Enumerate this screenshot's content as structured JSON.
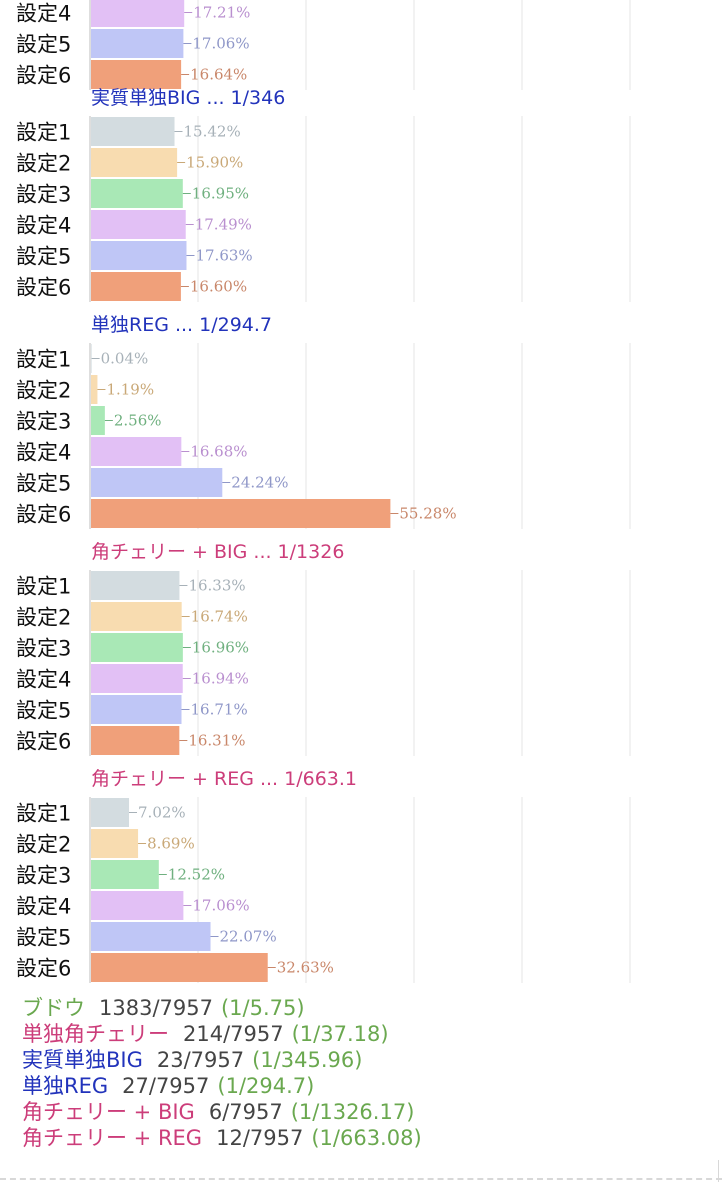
{
  "chart_data": [
    {
      "type": "bar",
      "title": "",
      "categories": [
        "設定4",
        "設定5",
        "設定6"
      ],
      "values": [
        17.21,
        17.06,
        16.64
      ],
      "value_labels": [
        "17.21%",
        "17.06%",
        "16.64%"
      ],
      "xlim": [
        0,
        100
      ],
      "grid": true
    },
    {
      "type": "bar",
      "title": "実質単独BIG ... 1/346",
      "categories": [
        "設定1",
        "設定2",
        "設定3",
        "設定4",
        "設定5",
        "設定6"
      ],
      "values": [
        15.42,
        15.9,
        16.95,
        17.49,
        17.63,
        16.6
      ],
      "value_labels": [
        "15.42%",
        "15.90%",
        "16.95%",
        "17.49%",
        "17.63%",
        "16.60%"
      ],
      "xlim": [
        0,
        100
      ],
      "grid": true
    },
    {
      "type": "bar",
      "title": "単独REG ... 1/294.7",
      "categories": [
        "設定1",
        "設定2",
        "設定3",
        "設定4",
        "設定5",
        "設定6"
      ],
      "values": [
        0.04,
        1.19,
        2.56,
        16.68,
        24.24,
        55.28
      ],
      "value_labels": [
        "0.04%",
        "1.19%",
        "2.56%",
        "16.68%",
        "24.24%",
        "55.28%"
      ],
      "xlim": [
        0,
        100
      ],
      "grid": true
    },
    {
      "type": "bar",
      "title": "角チェリー + BIG ... 1/1326",
      "categories": [
        "設定1",
        "設定2",
        "設定3",
        "設定4",
        "設定5",
        "設定6"
      ],
      "values": [
        16.33,
        16.74,
        16.96,
        16.94,
        16.71,
        16.31
      ],
      "value_labels": [
        "16.33%",
        "16.74%",
        "16.96%",
        "16.94%",
        "16.71%",
        "16.31%"
      ],
      "xlim": [
        0,
        100
      ],
      "grid": true
    },
    {
      "type": "bar",
      "title": "角チェリー + REG ... 1/663.1",
      "categories": [
        "設定1",
        "設定2",
        "設定3",
        "設定4",
        "設定5",
        "設定6"
      ],
      "values": [
        7.02,
        8.69,
        12.52,
        17.06,
        22.07,
        32.63
      ],
      "value_labels": [
        "7.02%",
        "8.69%",
        "12.52%",
        "17.06%",
        "22.07%",
        "32.63%"
      ],
      "xlim": [
        0,
        100
      ],
      "grid": true
    }
  ],
  "colors": {
    "settings": {
      "設定1": "#d3dce0",
      "設定2": "#f8dcb0",
      "設定3": "#a9e8b6",
      "設定4": "#e2c0f5",
      "設定5": "#bfc6f6",
      "設定6": "#f0a07a"
    },
    "labels": {
      "設定1": "#a7b1b8",
      "設定2": "#c9a877",
      "設定3": "#6fb07f",
      "設定4": "#b98fcf",
      "設定5": "#8f97c8",
      "設定6": "#c9876a"
    },
    "title_blue": "#2233bb",
    "title_pink": "#cc3d7a",
    "grid": "#e6e6e6"
  },
  "summary": [
    {
      "name": "ブドウ",
      "name_color": "#6aa84f",
      "count": "1383/7957",
      "ratio": "(1/5.75)"
    },
    {
      "name": "単独角チェリー",
      "name_color": "#cc3d7a",
      "count": "214/7957",
      "ratio": "(1/37.18)"
    },
    {
      "name": "実質単独BIG",
      "name_color": "#2233bb",
      "count": "23/7957",
      "ratio": "(1/345.96)"
    },
    {
      "name": "単独REG",
      "name_color": "#2233bb",
      "count": "27/7957",
      "ratio": "(1/294.7)"
    },
    {
      "name": "角チェリー + BIG",
      "name_color": "#cc3d7a",
      "count": "6/7957",
      "ratio": "(1/1326.17)"
    },
    {
      "name": "角チェリー + REG",
      "name_color": "#cc3d7a",
      "count": "12/7957",
      "ratio": "(1/663.08)"
    }
  ]
}
